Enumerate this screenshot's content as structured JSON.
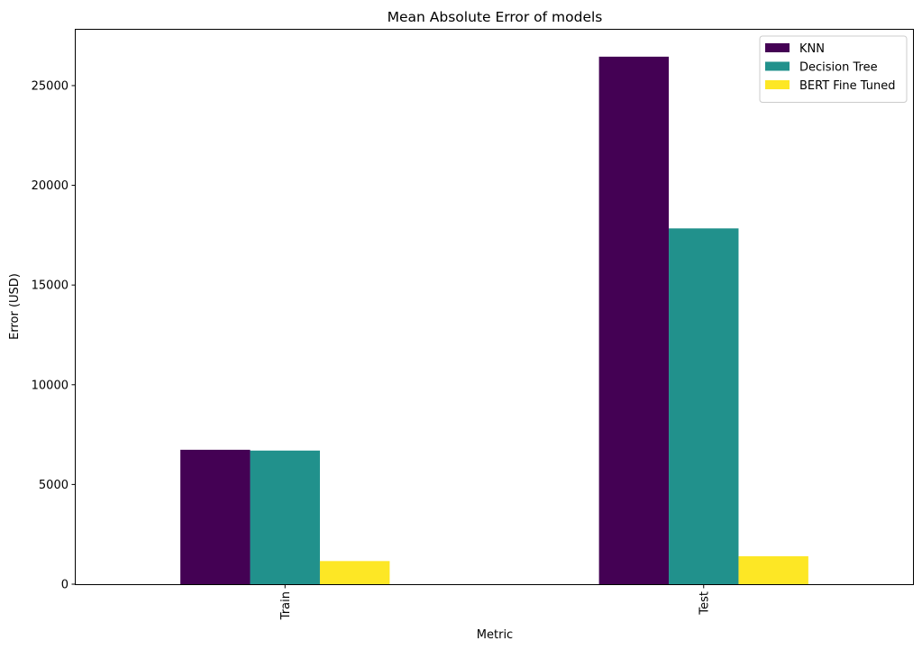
{
  "chart_data": {
    "type": "bar",
    "title": "Mean Absolute Error of models",
    "xlabel": "Metric",
    "ylabel": "Error (USD)",
    "categories": [
      "Train",
      "Test"
    ],
    "series": [
      {
        "name": "KNN",
        "color": "#440154",
        "values": [
          6740,
          26450
        ]
      },
      {
        "name": "Decision Tree",
        "color": "#21918c",
        "values": [
          6700,
          17840
        ]
      },
      {
        "name": "BERT Fine Tuned",
        "color": "#fde725",
        "values": [
          1160,
          1400
        ]
      }
    ],
    "ylim": [
      0,
      27800
    ],
    "yticks": [
      0,
      5000,
      10000,
      15000,
      20000,
      25000
    ],
    "ytick_labels": [
      "0",
      "5000",
      "10000",
      "15000",
      "20000",
      "25000"
    ],
    "xtick_rotation": "vertical",
    "grid": false,
    "legend_position": "top-right"
  }
}
